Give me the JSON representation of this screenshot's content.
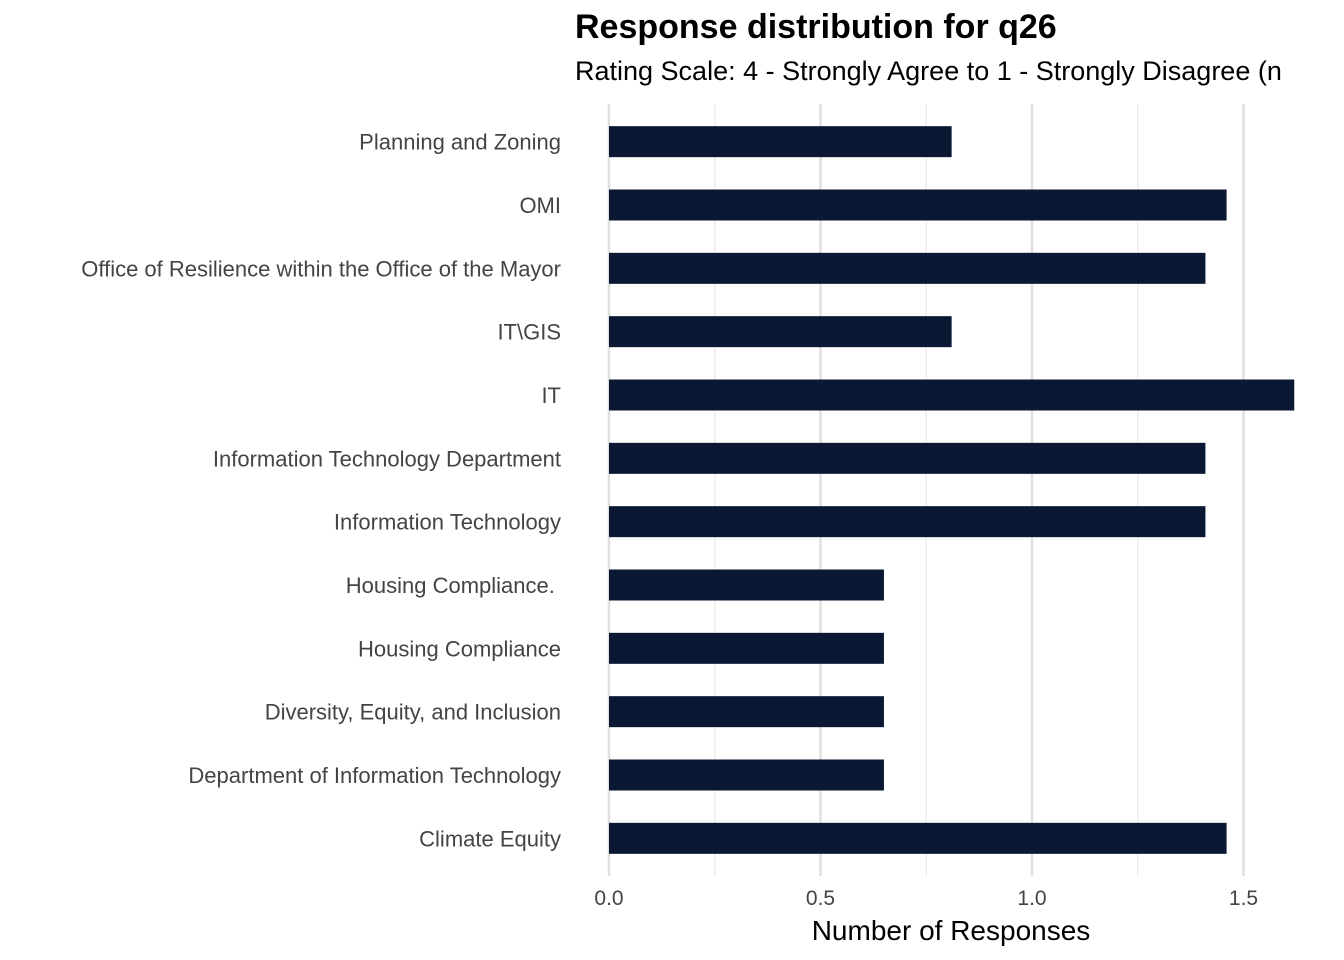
{
  "chart_data": {
    "type": "bar",
    "orientation": "horizontal",
    "title": "Response distribution for q26",
    "subtitle": "Rating Scale: 4 - Strongly Agree to 1 - Strongly Disagree (n",
    "xlabel": "Number of Responses",
    "ylabel": "",
    "xlim": [
      0,
      1.62
    ],
    "xticks": [
      "0.0",
      "0.5",
      "1.0",
      "1.5"
    ],
    "xtick_values": [
      0,
      0.5,
      1.0,
      1.5
    ],
    "grid": true,
    "bar_color": "#0a1833",
    "categories": [
      "Planning and Zoning",
      "OMI",
      "Office of Resilience within the Office of the Mayor",
      "IT\\GIS",
      "IT",
      "Information Technology Department",
      "Information Technology",
      "Housing Compliance. ",
      "Housing Compliance",
      "Diversity, Equity, and Inclusion",
      "Department of Information Technology",
      "Climate Equity"
    ],
    "values": [
      0.81,
      1.46,
      1.41,
      0.81,
      1.62,
      1.41,
      1.41,
      0.65,
      0.65,
      0.65,
      0.65,
      1.46
    ]
  }
}
